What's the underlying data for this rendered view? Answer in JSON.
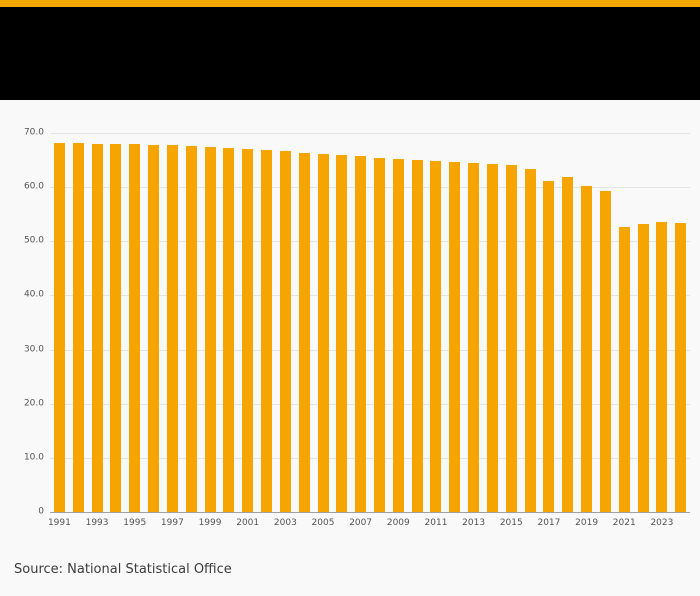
{
  "page": {
    "accent_color": "#f5a800",
    "header_color": "#000000",
    "source": "Source: National Statistical Office"
  },
  "chart_data": {
    "type": "bar",
    "title": "",
    "bar_color": "#f5a400",
    "grid": true,
    "legend": "none",
    "ylim": [
      0,
      70
    ],
    "yticks": [
      0,
      10,
      20,
      30,
      40,
      50,
      60,
      70
    ],
    "ytick_labels": [
      "0",
      "10.0",
      "20.0",
      "30.0",
      "40.0",
      "50.0",
      "60.0",
      "70.0"
    ],
    "xtick_labels": [
      "1991",
      "1993",
      "1995",
      "1997",
      "1999",
      "2001",
      "2003",
      "2005",
      "2007",
      "2009",
      "2011",
      "2013",
      "2015",
      "2017",
      "2019",
      "2021",
      "2023"
    ],
    "x": [
      1991,
      1992,
      1993,
      1994,
      1995,
      1996,
      1997,
      1998,
      1999,
      2000,
      2001,
      2002,
      2003,
      2004,
      2005,
      2006,
      2007,
      2008,
      2009,
      2010,
      2011,
      2012,
      2013,
      2014,
      2015,
      2016,
      2017,
      2018,
      2019,
      2020,
      2021,
      2022,
      2023,
      2024
    ],
    "values": [
      68.2,
      68.1,
      68.0,
      67.9,
      67.9,
      67.8,
      67.7,
      67.6,
      67.4,
      67.2,
      67.0,
      66.9,
      66.6,
      66.3,
      66.1,
      65.9,
      65.7,
      65.4,
      65.2,
      65.0,
      64.8,
      64.7,
      64.5,
      64.3,
      64.1,
      63.3,
      61.2,
      61.8,
      60.3,
      59.2,
      52.6,
      53.2,
      53.5,
      53.3
    ]
  }
}
